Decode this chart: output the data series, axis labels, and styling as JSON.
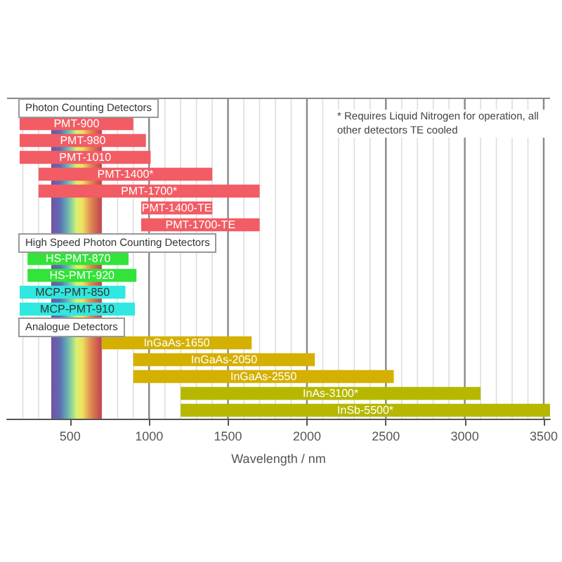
{
  "chart_data": {
    "type": "bar",
    "orientation": "horizontal",
    "xlabel": "Wavelength / nm",
    "categories": [
      null,
      "PMT-900",
      "PMT-980",
      "PMT-1010",
      "PMT-1400*",
      "PMT-1700*",
      "PMT-1400-TE",
      "PMT-1700-TE",
      null,
      "HS-PMT-870",
      "HS-PMT-920",
      "MCP-PMT-850",
      "MCP-PMT-910",
      null,
      "InGaAs-1650",
      "InGaAs-2050",
      "InGaAs-2550",
      "InAs-3100*",
      "InSb-5500*"
    ],
    "base": [
      null,
      180,
      180,
      180,
      300,
      300,
      950,
      950,
      null,
      230,
      230,
      180,
      180,
      null,
      700,
      900,
      900,
      1200,
      1200
    ],
    "values": [
      null,
      720,
      800,
      830,
      1100,
      1400,
      450,
      750,
      null,
      640,
      690,
      670,
      730,
      null,
      950,
      1150,
      1650,
      1900,
      2340
    ],
    "colors": [
      null,
      "#f25c64",
      "#f25c64",
      "#f25c64",
      "#f25c64",
      "#f25c64",
      "#f25c64",
      "#f25c64",
      null,
      "#33e33a",
      "#33e33a",
      "#2fe8df",
      "#2fe8df",
      null,
      "#d4b000",
      "#d4b000",
      "#d4b000",
      "#b6b800",
      "#b6b800"
    ],
    "xlim": [
      100,
      3540
    ],
    "xticks": [
      {
        "value": 200,
        "label": null
      },
      {
        "value": 300,
        "label": null
      },
      500,
      {
        "value": 700,
        "label": null
      },
      {
        "value": 800,
        "label": null
      },
      {
        "value": 900,
        "label": null
      },
      1000,
      {
        "value": 1100,
        "label": null
      },
      {
        "value": 1200,
        "label": null
      },
      {
        "value": 1300,
        "label": null
      },
      {
        "value": 1400,
        "label": null
      },
      1500,
      {
        "value": 1600,
        "label": null
      },
      {
        "value": 1700,
        "label": null
      },
      {
        "value": 1800,
        "label": null
      },
      {
        "value": 1900,
        "label": null
      },
      2000,
      {
        "value": 2100,
        "label": null
      },
      {
        "value": 2200,
        "label": null
      },
      {
        "value": 2300,
        "label": null
      },
      {
        "value": 2400,
        "label": null
      },
      2500,
      {
        "value": 2600,
        "label": null
      },
      {
        "value": 2700,
        "label": null
      },
      {
        "value": 2800,
        "label": null
      },
      {
        "value": 2900,
        "label": null
      },
      3000,
      {
        "value": 3100,
        "label": null
      },
      {
        "value": 3200,
        "label": null
      },
      {
        "value": 3300,
        "label": null
      },
      {
        "value": 3400,
        "label": null
      },
      3500
    ],
    "grid": "x",
    "bands": [
      {
        "axis": "x",
        "from": 380,
        "to": 700
      }
    ],
    "annotations": [
      "Photon Counting Detectors",
      "High Speed Photon Counting Detectors",
      "Analogue Detectors",
      "* Requires Liquid Nitrogen for operation, all other detectors TE cooled"
    ],
    "tick_labels": "x"
  }
}
